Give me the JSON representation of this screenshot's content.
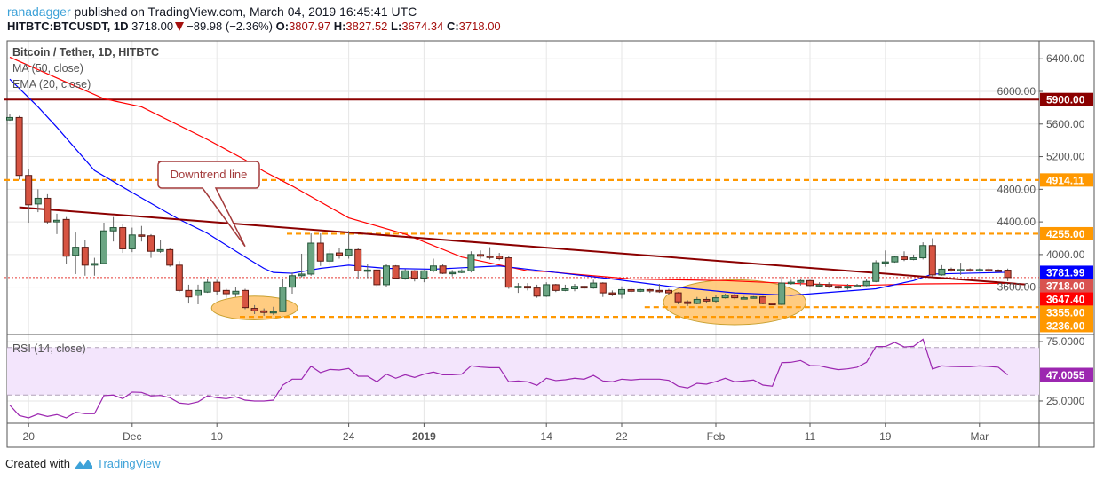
{
  "header": {
    "author": "ranadagger",
    "published": "published on TradingView.com, March 04, 2019 16:45:41 UTC",
    "symbol": "HITBTC:BTCUSDT, 1D",
    "last": "3718.00",
    "change": "−89.98 (−2.36%)",
    "o_label": "O:",
    "o_value": "3807.97",
    "h_label": "H:",
    "h_value": "3827.52",
    "l_label": "L:",
    "l_value": "3674.34",
    "c_label": "C:",
    "c_value": "3718.00"
  },
  "legend": {
    "title": "Bitcoin / Tether, 1D, HITBTC",
    "ma": "MA (50, close)",
    "ema": "EMA (20, close)",
    "rsi": "RSI (14, close)"
  },
  "footer": {
    "created_with": "Created with",
    "brand": "TradingView"
  },
  "colors": {
    "up": "#6ba583",
    "up_border": "#225437",
    "down": "#d75442",
    "down_border": "#5b1a13",
    "ma": "#ff0000",
    "ema": "#0000ff",
    "trendline": "#8b0000",
    "level_orange": "#ff9800",
    "level_red": "#8b0000",
    "rsi": "#9c27b0",
    "rsi_band": "#f3e5fc",
    "brand": "#3ea2d8"
  },
  "chart_data": {
    "type": "candlestick",
    "x": [
      "2018-11-18",
      "2018-11-19",
      "2018-11-20",
      "2018-11-21",
      "2018-11-22",
      "2018-11-23",
      "2018-11-24",
      "2018-11-25",
      "2018-11-26",
      "2018-11-27",
      "2018-11-28",
      "2018-11-29",
      "2018-11-30",
      "2018-12-01",
      "2018-12-02",
      "2018-12-03",
      "2018-12-04",
      "2018-12-05",
      "2018-12-06",
      "2018-12-07",
      "2018-12-08",
      "2018-12-09",
      "2018-12-10",
      "2018-12-11",
      "2018-12-12",
      "2018-12-13",
      "2018-12-14",
      "2018-12-15",
      "2018-12-16",
      "2018-12-17",
      "2018-12-18",
      "2018-12-19",
      "2018-12-20",
      "2018-12-21",
      "2018-12-22",
      "2018-12-23",
      "2018-12-24",
      "2018-12-25",
      "2018-12-26",
      "2018-12-27",
      "2018-12-28",
      "2018-12-29",
      "2018-12-30",
      "2018-12-31",
      "2019-01-01",
      "2019-01-02",
      "2019-01-03",
      "2019-01-04",
      "2019-01-05",
      "2019-01-06",
      "2019-01-07",
      "2019-01-08",
      "2019-01-09",
      "2019-01-10",
      "2019-01-11",
      "2019-01-12",
      "2019-01-13",
      "2019-01-14",
      "2019-01-15",
      "2019-01-16",
      "2019-01-17",
      "2019-01-18",
      "2019-01-19",
      "2019-01-20",
      "2019-01-21",
      "2019-01-22",
      "2019-01-23",
      "2019-01-24",
      "2019-01-25",
      "2019-01-26",
      "2019-01-27",
      "2019-01-28",
      "2019-01-29",
      "2019-01-30",
      "2019-01-31",
      "2019-02-01",
      "2019-02-02",
      "2019-02-03",
      "2019-02-04",
      "2019-02-05",
      "2019-02-06",
      "2019-02-07",
      "2019-02-08",
      "2019-02-09",
      "2019-02-10",
      "2019-02-11",
      "2019-02-12",
      "2019-02-13",
      "2019-02-14",
      "2019-02-15",
      "2019-02-16",
      "2019-02-17",
      "2019-02-18",
      "2019-02-19",
      "2019-02-20",
      "2019-02-21",
      "2019-02-22",
      "2019-02-23",
      "2019-02-24",
      "2019-02-25",
      "2019-02-26",
      "2019-02-27",
      "2019-02-28",
      "2019-03-01",
      "2019-03-02",
      "2019-03-03",
      "2019-03-04"
    ],
    "open": [
      5650,
      5680,
      4970,
      4620,
      4690,
      4400,
      4430,
      3990,
      4090,
      3870,
      3890,
      4290,
      4330,
      4070,
      4240,
      4230,
      4040,
      4060,
      3870,
      3560,
      3500,
      3540,
      3660,
      3560,
      3520,
      3560,
      3340,
      3310,
      3290,
      3300,
      3600,
      3740,
      3760,
      4140,
      3920,
      4020,
      3990,
      4060,
      3800,
      3810,
      3630,
      3860,
      3710,
      3800,
      3710,
      3800,
      3860,
      3770,
      3780,
      3800,
      4000,
      3980,
      3980,
      3960,
      3600,
      3610,
      3590,
      3490,
      3630,
      3560,
      3580,
      3610,
      3590,
      3650,
      3530,
      3520,
      3570,
      3550,
      3570,
      3560,
      3560,
      3530,
      3420,
      3400,
      3450,
      3430,
      3470,
      3500,
      3470,
      3470,
      3480,
      3400,
      3390,
      3650,
      3660,
      3680,
      3620,
      3630,
      3610,
      3590,
      3610,
      3620,
      3670,
      3900,
      3910,
      3970,
      3940,
      3960,
      4110,
      3750,
      3820,
      3810,
      3815,
      3810,
      3815,
      3808,
      3807.97
    ],
    "high": [
      5720,
      5700,
      5050,
      4800,
      4740,
      4500,
      4460,
      4270,
      4180,
      3960,
      4390,
      4460,
      4370,
      4330,
      4350,
      4250,
      4180,
      4080,
      3920,
      3630,
      3630,
      3700,
      3690,
      3580,
      3600,
      3580,
      3380,
      3340,
      3360,
      3700,
      3780,
      4010,
      4260,
      4260,
      4060,
      4080,
      4290,
      4080,
      3880,
      3820,
      3880,
      3870,
      3820,
      3810,
      3810,
      3950,
      3880,
      3810,
      3820,
      4040,
      4050,
      4090,
      4020,
      3980,
      3650,
      3650,
      3630,
      3660,
      3640,
      3630,
      3640,
      3620,
      3690,
      3660,
      3560,
      3610,
      3600,
      3580,
      3580,
      3640,
      3580,
      3540,
      3440,
      3480,
      3480,
      3500,
      3520,
      3520,
      3490,
      3490,
      3490,
      3410,
      3730,
      3690,
      3700,
      3690,
      3660,
      3660,
      3620,
      3640,
      3640,
      3700,
      3930,
      4050,
      3980,
      4040,
      4000,
      4150,
      4200,
      3870,
      3840,
      3900,
      3830,
      3830,
      3840,
      3820,
      3827.52
    ],
    "low": [
      5640,
      4920,
      4390,
      4520,
      4370,
      4250,
      3890,
      3760,
      3740,
      3740,
      3890,
      4160,
      4020,
      4030,
      4160,
      3960,
      4020,
      3850,
      3540,
      3400,
      3390,
      3530,
      3510,
      3470,
      3480,
      3330,
      3270,
      3250,
      3260,
      3300,
      3520,
      3720,
      3740,
      3860,
      3870,
      3950,
      3950,
      3700,
      3710,
      3600,
      3600,
      3700,
      3690,
      3670,
      3660,
      3780,
      3760,
      3730,
      3770,
      3780,
      3950,
      3940,
      3930,
      3580,
      3530,
      3560,
      3470,
      3480,
      3540,
      3550,
      3550,
      3570,
      3580,
      3480,
      3490,
      3460,
      3530,
      3540,
      3530,
      3530,
      3500,
      3390,
      3370,
      3390,
      3410,
      3410,
      3460,
      3450,
      3450,
      3460,
      3390,
      3380,
      3380,
      3630,
      3620,
      3610,
      3600,
      3590,
      3570,
      3570,
      3600,
      3610,
      3660,
      3850,
      3900,
      3920,
      3930,
      3940,
      3730,
      3740,
      3790,
      3750,
      3790,
      3790,
      3780,
      3790,
      3674.34
    ],
    "close": [
      5680,
      4970,
      4610,
      4690,
      4400,
      4420,
      3980,
      4090,
      3870,
      3890,
      4290,
      4330,
      4070,
      4240,
      4230,
      4040,
      4060,
      3870,
      3560,
      3480,
      3560,
      3660,
      3550,
      3520,
      3550,
      3350,
      3310,
      3290,
      3300,
      3600,
      3740,
      3760,
      4140,
      3920,
      4010,
      3990,
      4060,
      3800,
      3810,
      3630,
      3860,
      3710,
      3800,
      3710,
      3800,
      3860,
      3770,
      3780,
      3800,
      4000,
      3980,
      3975,
      3950,
      3600,
      3610,
      3590,
      3490,
      3630,
      3560,
      3580,
      3610,
      3590,
      3650,
      3530,
      3520,
      3570,
      3550,
      3570,
      3560,
      3555,
      3530,
      3420,
      3400,
      3450,
      3430,
      3470,
      3500,
      3470,
      3470,
      3480,
      3400,
      3390,
      3650,
      3660,
      3680,
      3620,
      3630,
      3610,
      3590,
      3610,
      3620,
      3670,
      3900,
      3910,
      3970,
      3940,
      3960,
      4110,
      3750,
      3820,
      3810,
      3815,
      3810,
      3815,
      3808,
      3805,
      3718
    ],
    "ma50": [
      [
        "2018-11-18",
        6420
      ],
      [
        "2018-11-28",
        5910
      ],
      [
        "2018-12-02",
        5810
      ],
      [
        "2018-12-09",
        5410
      ],
      [
        "2018-12-13",
        5160
      ],
      [
        "2018-12-15",
        5020
      ],
      [
        "2018-12-18",
        4840
      ],
      [
        "2018-12-24",
        4450
      ],
      [
        "2018-12-30",
        4250
      ],
      [
        "2019-01-05",
        3970
      ],
      [
        "2019-01-12",
        3800
      ],
      [
        "2019-01-14",
        3790
      ],
      [
        "2019-01-23",
        3700
      ],
      [
        "2019-02-02",
        3680
      ],
      [
        "2019-02-08",
        3650
      ],
      [
        "2019-02-16",
        3620
      ],
      [
        "2019-02-23",
        3640
      ],
      [
        "2019-03-04",
        3647.4
      ]
    ],
    "ema20": [
      [
        "2018-11-18",
        6150
      ],
      [
        "2018-11-21",
        5810
      ],
      [
        "2018-11-23",
        5560
      ],
      [
        "2018-11-27",
        5030
      ],
      [
        "2018-12-01",
        4760
      ],
      [
        "2018-12-06",
        4430
      ],
      [
        "2018-12-09",
        4260
      ],
      [
        "2018-12-13",
        3970
      ],
      [
        "2018-12-15",
        3830
      ],
      [
        "2018-12-16",
        3780
      ],
      [
        "2018-12-18",
        3770
      ],
      [
        "2018-12-21",
        3830
      ],
      [
        "2018-12-24",
        3870
      ],
      [
        "2018-12-28",
        3830
      ],
      [
        "2019-01-02",
        3820
      ],
      [
        "2019-01-09",
        3860
      ],
      [
        "2019-01-12",
        3820
      ],
      [
        "2019-01-21",
        3700
      ],
      [
        "2019-01-27",
        3610
      ],
      [
        "2019-02-03",
        3530
      ],
      [
        "2019-02-09",
        3500
      ],
      [
        "2019-02-18",
        3580
      ],
      [
        "2019-02-22",
        3680
      ],
      [
        "2019-02-24",
        3760
      ],
      [
        "2019-03-04",
        3781.99
      ]
    ],
    "ma_name": "MA (50, close)",
    "ema_name": "EMA (20, close)",
    "ylim": [
      3020,
      6620
    ],
    "yticks": [
      6400,
      6000,
      5600,
      5200,
      4800,
      4400,
      4000,
      3600
    ],
    "ytick_labels": [
      "6400.00",
      "6000.00",
      "5600.00",
      "5200.00",
      "4800.00",
      "4400.00",
      "4000.00",
      "3600.00"
    ],
    "xticks": [
      [
        "2018-11-20",
        "20"
      ],
      [
        "2018-12-01",
        "Dec"
      ],
      [
        "2018-12-10",
        "10"
      ],
      [
        "2018-12-24",
        "24"
      ],
      [
        "2019-01-01",
        "2019"
      ],
      [
        "2019-01-14",
        "14"
      ],
      [
        "2019-01-22",
        "22"
      ],
      [
        "2019-02-01",
        "Feb"
      ],
      [
        "2019-02-11",
        "11"
      ],
      [
        "2019-02-19",
        "19"
      ],
      [
        "2019-03-01",
        "Mar"
      ]
    ],
    "levels": [
      {
        "value": 5900,
        "style": "solid",
        "color": "#8b0000",
        "from": "2018-11-18"
      },
      {
        "value": 4914.11,
        "style": "dashed",
        "color": "#ff9800",
        "from": "2018-11-18"
      },
      {
        "value": 4255,
        "style": "dashed",
        "color": "#ff9800",
        "from": "2018-12-18"
      },
      {
        "value": 3355,
        "style": "dashed",
        "color": "#ff9800",
        "from": "2019-01-25"
      },
      {
        "value": 3236,
        "style": "dashed",
        "color": "#ff9800",
        "from": "2018-12-13"
      },
      {
        "value": 3718,
        "style": "dotted",
        "color": "#e53935",
        "from": "2018-11-18"
      }
    ],
    "price_labels": [
      {
        "text": "5900.00",
        "value": 5900,
        "bg": "#8b0000"
      },
      {
        "text": "4914.11",
        "value": 4914.11,
        "bg": "#ff9800"
      },
      {
        "text": "4255.00",
        "value": 4255,
        "bg": "#ff9800"
      },
      {
        "text": "3781.99",
        "value": 3781.99,
        "bg": "#0000ff"
      },
      {
        "text": "3718.00",
        "value": 3718,
        "bg": "#d9534f"
      },
      {
        "text": "3647.40",
        "value": 3647.4,
        "bg": "#ff0000"
      },
      {
        "text": "3355.00",
        "value": 3355,
        "bg": "#ff9800"
      },
      {
        "text": "3236.00",
        "value": 3236,
        "bg": "#ff9800"
      }
    ],
    "trendline": [
      [
        "2018-11-19",
        4580
      ],
      [
        "2019-03-04",
        3650
      ]
    ],
    "callout": {
      "text": "Downtrend line",
      "points_to": [
        "2018-12-13",
        4100
      ]
    },
    "highlights": [
      {
        "from": "2018-12-10",
        "to": "2018-12-18",
        "low": 3200,
        "high": 3490
      },
      {
        "from": "2019-01-27",
        "to": "2019-02-10",
        "low": 3140,
        "high": 3690
      }
    ],
    "rsi": {
      "name": "RSI (14, close)",
      "last_label": "47.0055",
      "ylim": [
        6.3,
        81
      ],
      "band": [
        30,
        70
      ],
      "ticks": [
        75,
        25
      ],
      "tick_labels": [
        "75.0000",
        "25.0000"
      ],
      "values": [
        21.5,
        12.8,
        10.8,
        14,
        12,
        13.6,
        10.8,
        15.5,
        14.3,
        14.3,
        29.5,
        30,
        27,
        32.5,
        32.2,
        29.3,
        29.7,
        27.8,
        23.3,
        22.5,
        24.3,
        29.3,
        27.8,
        27,
        28.5,
        25.7,
        25,
        25,
        25.7,
        38.4,
        43.4,
        43.4,
        54.3,
        48.9,
        51.6,
        51.1,
        52.4,
        45.9,
        45.9,
        41.2,
        47.6,
        44.2,
        47.1,
        44.9,
        47.6,
        49.4,
        47.1,
        47.1,
        47.6,
        54.6,
        53.6,
        53.1,
        53.1,
        41.2,
        41.9,
        41.2,
        38.2,
        44.2,
        42.2,
        42.9,
        44.2,
        43.4,
        46.6,
        41.9,
        41.2,
        43.4,
        42.7,
        43.4,
        43.4,
        43.4,
        42.4,
        37.5,
        36,
        39.9,
        39.2,
        41.4,
        44.2,
        41.2,
        41.9,
        42.7,
        38.4,
        37.5,
        57.3,
        57.6,
        59.1,
        54.9,
        54.6,
        52.9,
        51.4,
        52.1,
        53.4,
        57.6,
        70.8,
        70.8,
        74.3,
        70.5,
        71,
        77,
        51.9,
        54.6,
        54.1,
        53.9,
        53.9,
        54.6,
        54.1,
        53.4,
        47.0055
      ]
    }
  }
}
